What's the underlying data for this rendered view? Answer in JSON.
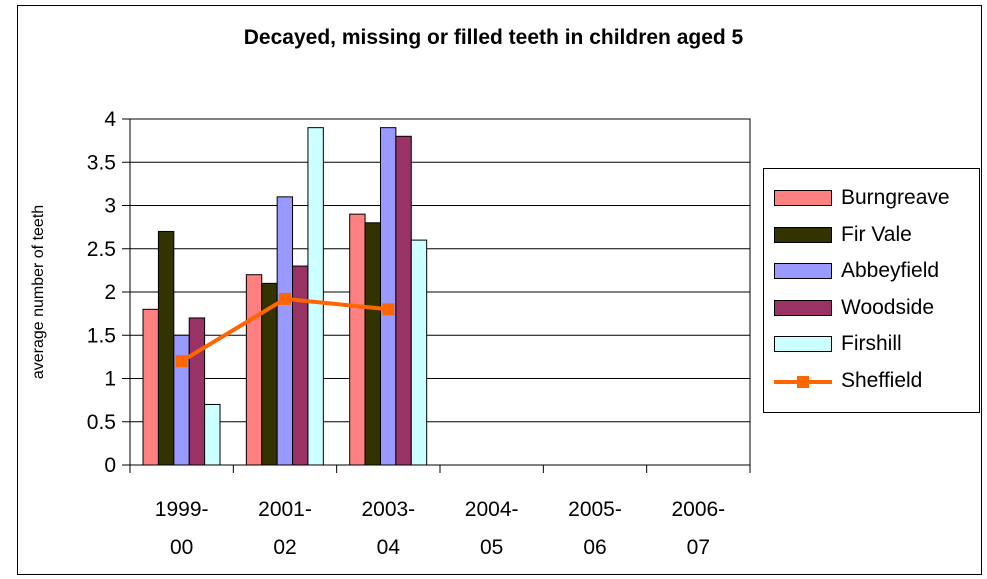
{
  "chart_data": {
    "type": "bar",
    "title": "Decayed, missing or filled teeth in children aged 5",
    "xlabel": "",
    "ylabel": "average number of teeth",
    "ylim": [
      0,
      4
    ],
    "yticks": [
      "0",
      "0.5",
      "1",
      "1.5",
      "2",
      "2.5",
      "3",
      "3.5",
      "4"
    ],
    "categories": [
      [
        "1999-",
        "00"
      ],
      [
        "2001-",
        "02"
      ],
      [
        "2003-",
        "04"
      ],
      [
        "2004-",
        "05"
      ],
      [
        "2005-",
        "06"
      ],
      [
        "2006-",
        "07"
      ]
    ],
    "grid": "horizontal",
    "legend_position": "right",
    "series": [
      {
        "name": "Burngreave",
        "kind": "bar",
        "color": "#ff8080",
        "values": [
          1.8,
          2.2,
          2.9,
          null,
          null,
          null
        ]
      },
      {
        "name": "Fir Vale",
        "kind": "bar",
        "color": "#333300",
        "values": [
          2.7,
          2.1,
          2.8,
          null,
          null,
          null
        ]
      },
      {
        "name": "Abbeyfield",
        "kind": "bar",
        "color": "#9999ff",
        "values": [
          1.5,
          3.1,
          3.9,
          null,
          null,
          null
        ]
      },
      {
        "name": "Woodside",
        "kind": "bar",
        "color": "#993366",
        "values": [
          1.7,
          2.3,
          3.8,
          null,
          null,
          null
        ]
      },
      {
        "name": "Firshill",
        "kind": "bar",
        "color": "#ccffff",
        "values": [
          0.7,
          3.9,
          2.6,
          null,
          null,
          null
        ]
      },
      {
        "name": "Sheffield",
        "kind": "line",
        "color": "#ff6600",
        "marker": "square",
        "values": [
          1.2,
          1.92,
          1.8,
          null,
          null,
          null
        ]
      }
    ]
  }
}
